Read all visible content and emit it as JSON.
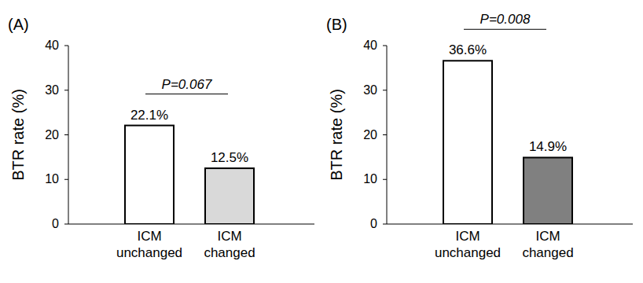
{
  "chart_data": [
    {
      "type": "bar",
      "title": "(A)",
      "y_label": "BTR rate (%)",
      "categories": [
        "ICM unchanged",
        "ICM changed"
      ],
      "values": [
        22.1,
        12.5
      ],
      "value_labels": [
        "22.1%",
        "12.5%"
      ],
      "colors": [
        "#ffffff",
        "#d9d9d9"
      ],
      "ylim": [
        0,
        40
      ],
      "yticks": [
        0,
        10,
        20,
        30,
        40
      ],
      "grid": false,
      "data_labels": true,
      "annotation": "P=0.067"
    },
    {
      "type": "bar",
      "title": "(B)",
      "y_label": "BTR rate (%)",
      "categories": [
        "ICM unchanged",
        "ICM changed"
      ],
      "values": [
        36.6,
        14.9
      ],
      "value_labels": [
        "36.6%",
        "14.9%"
      ],
      "colors": [
        "#ffffff",
        "#808080"
      ],
      "ylim": [
        0,
        40
      ],
      "yticks": [
        0,
        10,
        20,
        30,
        40
      ],
      "grid": false,
      "data_labels": true,
      "annotation": "P=0.008"
    }
  ]
}
